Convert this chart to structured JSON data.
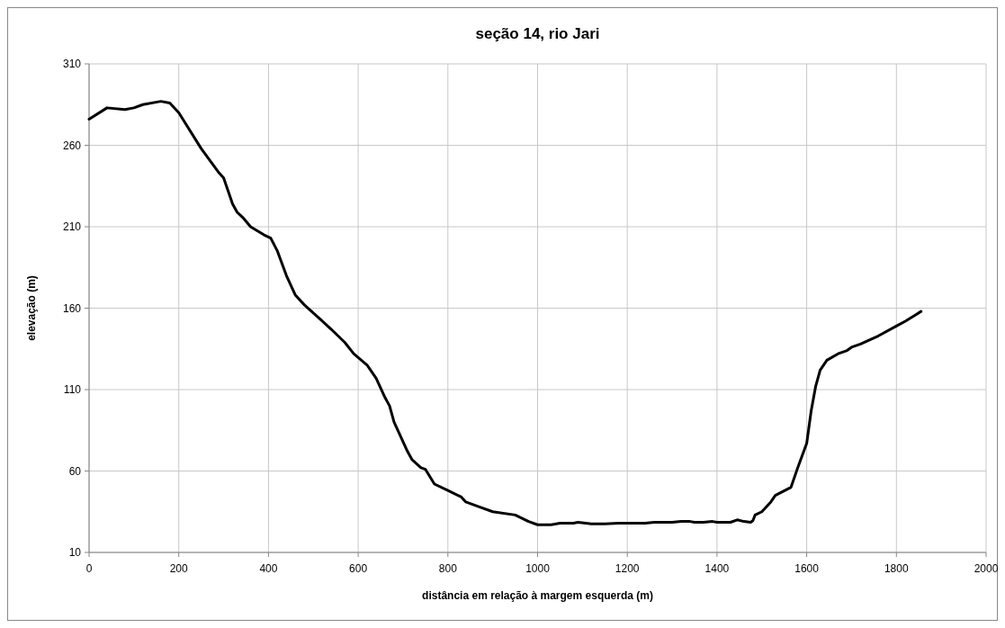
{
  "chart_data": {
    "type": "line",
    "title": "seção 14, rio Jari",
    "xlabel": "distância em relação à margem esquerda (m)",
    "ylabel": "elevação (m)",
    "xlim": [
      0,
      2000
    ],
    "xticks": [
      0,
      200,
      400,
      600,
      800,
      1000,
      1200,
      1400,
      1600,
      1800,
      2000
    ],
    "ylim": [
      10,
      310
    ],
    "yticks": [
      10,
      60,
      110,
      160,
      210,
      260,
      310
    ],
    "grid": true,
    "series": [
      {
        "color": "#000000",
        "x": [
          0,
          40,
          80,
          100,
          120,
          160,
          180,
          200,
          250,
          290,
          300,
          320,
          330,
          345,
          360,
          390,
          405,
          420,
          440,
          460,
          480,
          520,
          540,
          570,
          590,
          620,
          640,
          660,
          670,
          680,
          710,
          720,
          740,
          750,
          770,
          800,
          830,
          840,
          870,
          900,
          950,
          980,
          1000,
          1030,
          1050,
          1080,
          1090,
          1120,
          1150,
          1180,
          1240,
          1260,
          1300,
          1320,
          1340,
          1350,
          1370,
          1390,
          1400,
          1430,
          1445,
          1460,
          1475,
          1480,
          1485,
          1500,
          1520,
          1530,
          1565,
          1580,
          1600,
          1610,
          1620,
          1630,
          1645,
          1670,
          1690,
          1700,
          1720,
          1760,
          1800,
          1820,
          1855
        ],
        "values": [
          276,
          283,
          282,
          283,
          285,
          287,
          286,
          280,
          258,
          243,
          240,
          224,
          219,
          215,
          210,
          205,
          203,
          195,
          180,
          168,
          162,
          152,
          147,
          139,
          132,
          125,
          117,
          105,
          100,
          90,
          72,
          67,
          62,
          61,
          52,
          48,
          44,
          41,
          38,
          35,
          33,
          29,
          27,
          27,
          28,
          28,
          28.5,
          27.5,
          27.5,
          28,
          28,
          28.5,
          28.5,
          29,
          29,
          28.5,
          28.5,
          29,
          28.5,
          28.5,
          30,
          29,
          28.5,
          29.5,
          33,
          35,
          41,
          45,
          50,
          62,
          77,
          97,
          112,
          122,
          128,
          132,
          134,
          136,
          138,
          143,
          149,
          152,
          158
        ]
      }
    ]
  }
}
